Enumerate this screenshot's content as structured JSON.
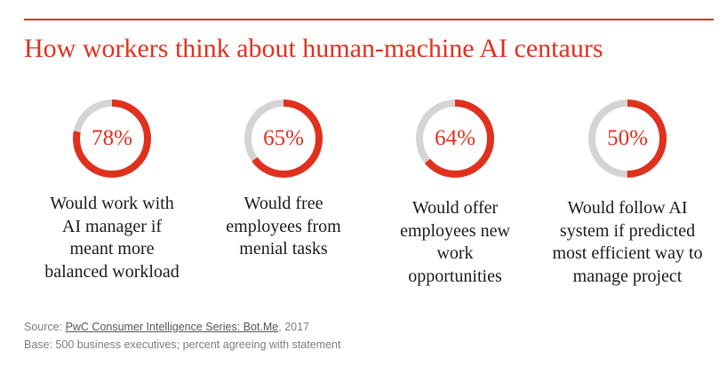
{
  "title": "How workers think about human-machine AI centaurs",
  "colors": {
    "accent": "#e0301e",
    "track": "#d4d4d4",
    "text": "#1a1a1a",
    "footnote": "#7d7d7d"
  },
  "chart_data": {
    "type": "pie",
    "title": "How workers think about human-machine AI centaurs",
    "unit": "%",
    "items": [
      {
        "value": 78,
        "value_label": "78%",
        "description": [
          "Would work with",
          "AI manager if",
          "meant more",
          "balanced workload"
        ]
      },
      {
        "value": 65,
        "value_label": "65%",
        "description": [
          "Would free",
          "employees from",
          "menial tasks"
        ]
      },
      {
        "value": 64,
        "value_label": "64%",
        "description": [
          "Would offer",
          "employees new",
          "work",
          "opportunities"
        ]
      },
      {
        "value": 50,
        "value_label": "50%",
        "description": [
          "Would follow AI",
          "system if predicted",
          "most efficient way to",
          "manage project"
        ]
      }
    ]
  },
  "footnote": {
    "source_prefix": "Source: ",
    "source_link": "PwC Consumer Intelligence Series: Bot.Me",
    "source_suffix": ", 2017",
    "base": "Base: 500 business executives; percent agreeing with statement"
  }
}
